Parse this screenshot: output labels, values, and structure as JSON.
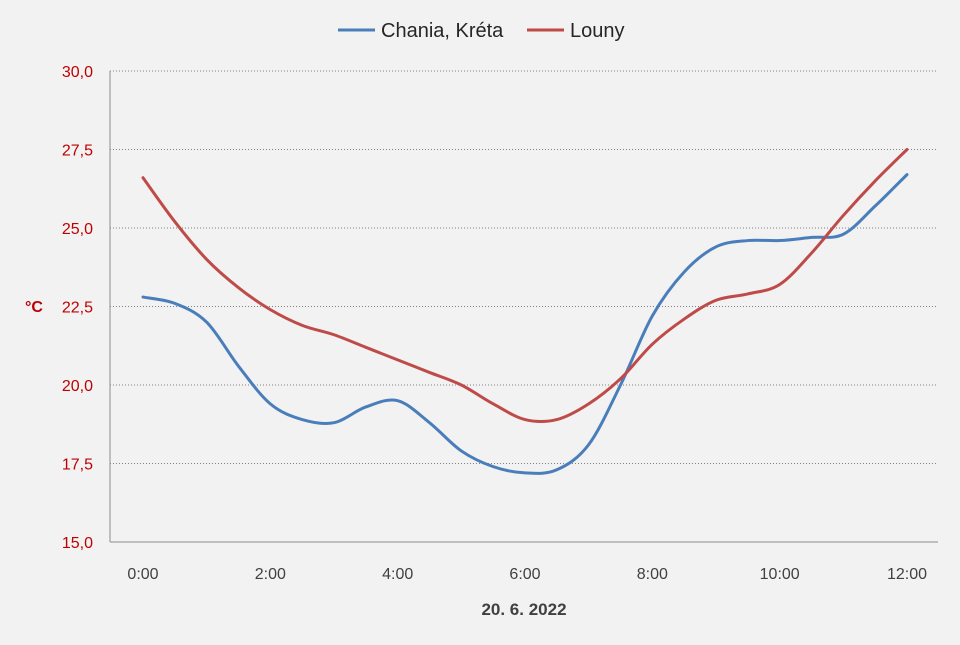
{
  "chart_data": {
    "type": "line",
    "title": "",
    "xlabel": "20. 6. 2022",
    "ylabel": "°C",
    "x": [
      "0:00",
      "0:30",
      "1:00",
      "1:30",
      "2:00",
      "2:30",
      "3:00",
      "3:30",
      "4:00",
      "4:30",
      "5:00",
      "5:30",
      "6:00",
      "6:30",
      "7:00",
      "7:30",
      "8:00",
      "8:30",
      "9:00",
      "9:30",
      "10:00",
      "10:30",
      "11:00",
      "11:30",
      "12:00"
    ],
    "x_tick_labels": [
      "0:00",
      "2:00",
      "4:00",
      "6:00",
      "8:00",
      "10:00",
      "12:00"
    ],
    "ylim": [
      15,
      30
    ],
    "y_tick_labels": [
      "15,0",
      "17,5",
      "20,0",
      "22,5",
      "25,0",
      "27,5",
      "30,0"
    ],
    "grid": true,
    "legend": "top",
    "series": [
      {
        "name": "Chania, Kréta",
        "color": "#4a7ebb",
        "values": [
          22.8,
          22.6,
          22.0,
          20.6,
          19.4,
          18.9,
          18.8,
          19.3,
          19.5,
          18.8,
          17.9,
          17.4,
          17.2,
          17.3,
          18.1,
          20.0,
          22.2,
          23.6,
          24.4,
          24.6,
          24.6,
          24.7,
          24.8,
          25.7,
          26.7
        ]
      },
      {
        "name": "Louny",
        "color": "#be4b48",
        "values": [
          26.6,
          25.2,
          24.0,
          23.1,
          22.4,
          21.9,
          21.6,
          21.2,
          20.8,
          20.4,
          20.0,
          19.4,
          18.9,
          18.9,
          19.4,
          20.2,
          21.3,
          22.1,
          22.7,
          22.9,
          23.2,
          24.2,
          25.4,
          26.5,
          27.5
        ]
      }
    ]
  }
}
